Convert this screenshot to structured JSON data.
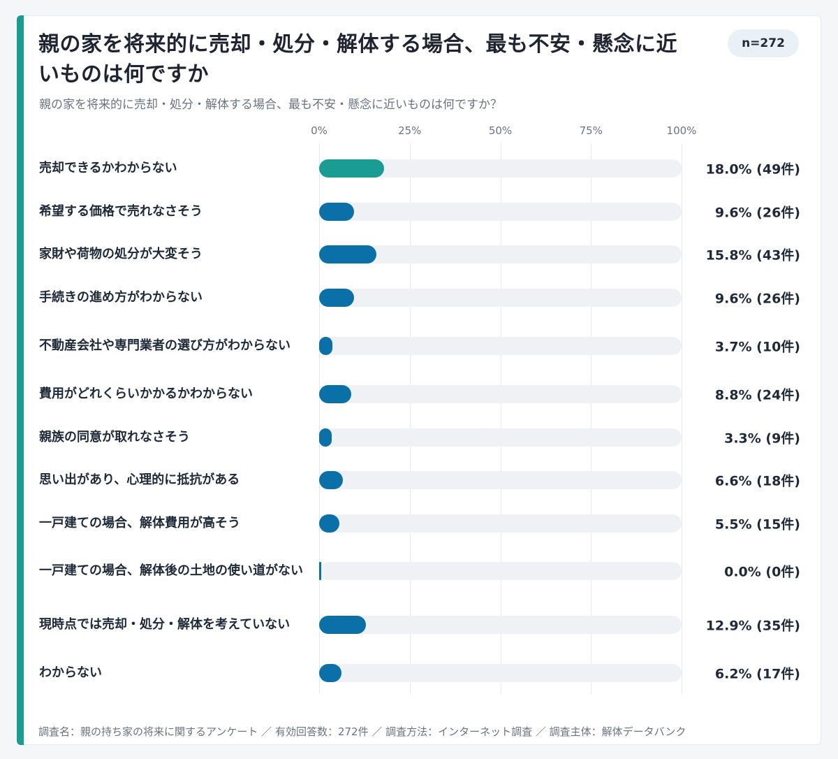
{
  "header": {
    "title": "親の家を将来的に売却・処分・解体する場合、最も不安・懸念に近いものは何ですか",
    "subtitle": "親の家を将来的に売却・処分・解体する場合、最も不安・懸念に近いものは何ですか？",
    "sample_badge": "n=272"
  },
  "footer": {
    "text": "調査名：親の持ち家の将来に関するアンケート ／ 有効回答数：272件 ／ 調査方法：インターネット調査 ／ 調査主体：解体データバンク"
  },
  "chart_data": {
    "type": "bar",
    "orientation": "horizontal",
    "title": "親の家を将来的に売却・処分・解体する場合、最も不安・懸念に近いものは何ですか",
    "xlim": [
      0,
      100
    ],
    "x_ticks": [
      "0%",
      "25%",
      "50%",
      "75%",
      "100%"
    ],
    "x_tick_values": [
      0,
      25,
      50,
      75,
      100
    ],
    "grid": true,
    "colors": {
      "highlight": "#1a9c93",
      "default": "#0b6fa8",
      "track": "#eff1f4"
    },
    "categories": [
      "売却できるかわからない",
      "希望する価格で売れなさそう",
      "家財や荷物の処分が大変そう",
      "手続きの進め方がわからない",
      "不動産会社や専門業者の選び方がわからない",
      "費用がどれくらいかかるかわからない",
      "親族の同意が取れなさそう",
      "思い出があり、心理的に抵抗がある",
      "一戸建ての場合、解体費用が高そう",
      "一戸建ての場合、解体後の土地の使い道がない",
      "現時点では売却・処分・解体を考えていない",
      "わからない"
    ],
    "values": [
      18.0,
      9.6,
      15.8,
      9.6,
      3.7,
      8.8,
      3.3,
      6.6,
      5.5,
      0.0,
      12.9,
      6.2
    ],
    "counts": [
      49,
      26,
      43,
      26,
      10,
      24,
      9,
      18,
      15,
      0,
      35,
      17
    ],
    "value_labels": [
      "18.0% (49件)",
      "9.6% (26件)",
      "15.8% (43件)",
      "9.6% (26件)",
      "3.7% (10件)",
      "8.8% (24件)",
      "3.3% (9件)",
      "6.6% (18件)",
      "5.5% (15件)",
      "0.0% (0件)",
      "12.9% (35件)",
      "6.2% (17件)"
    ]
  }
}
